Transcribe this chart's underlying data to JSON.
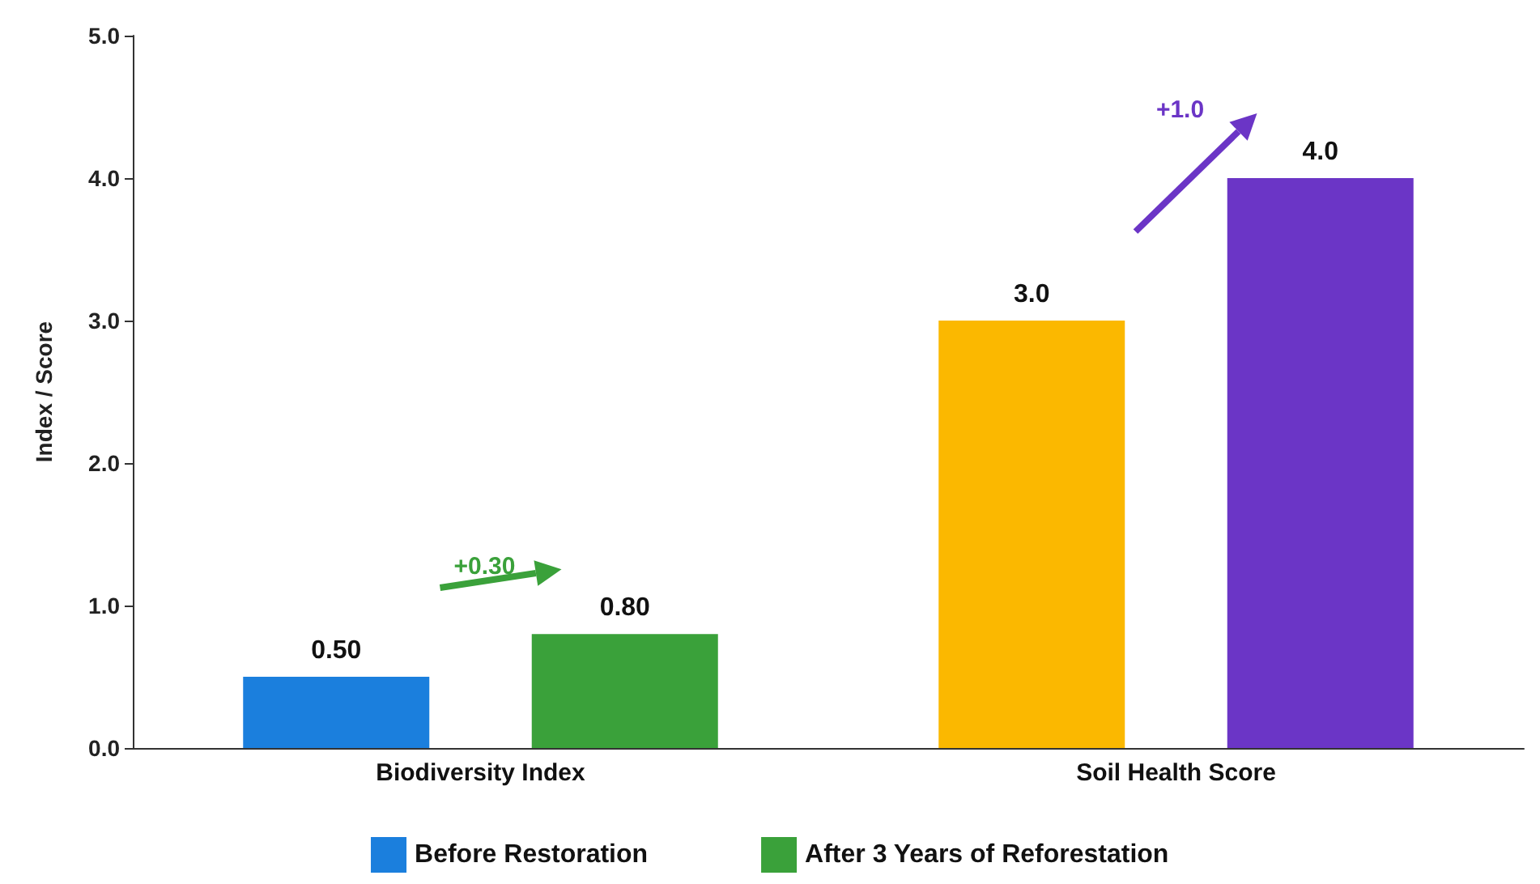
{
  "chart_data": {
    "type": "bar",
    "ylabel": "Index / Score",
    "categories": [
      "Biodiversity Index",
      "Soil Health Score"
    ],
    "series": [
      {
        "name": "Before Restoration",
        "color": "#1b7fdd",
        "colors": [
          "#1b7fdd",
          "#fbb800"
        ],
        "values": [
          0.5,
          3.0
        ],
        "value_labels": [
          "0.50",
          "3.0"
        ]
      },
      {
        "name": "After 3 Years of Reforestation",
        "color": "#3aa13a",
        "colors": [
          "#3aa13a",
          "#6b35c6"
        ],
        "values": [
          0.8,
          4.0
        ],
        "value_labels": [
          "0.80",
          "4.0"
        ]
      }
    ],
    "ylim": [
      0,
      5
    ],
    "yticks": [
      {
        "value": 0,
        "label": "0.0"
      },
      {
        "value": 1,
        "label": "1.0"
      },
      {
        "value": 2,
        "label": "2.0"
      },
      {
        "value": 3,
        "label": "3.0"
      },
      {
        "value": 4,
        "label": "4.0"
      },
      {
        "value": 5,
        "label": "5.0"
      }
    ],
    "annotations": [
      "+0.30",
      "+1.0"
    ],
    "grid": false,
    "legend": "bottom"
  }
}
